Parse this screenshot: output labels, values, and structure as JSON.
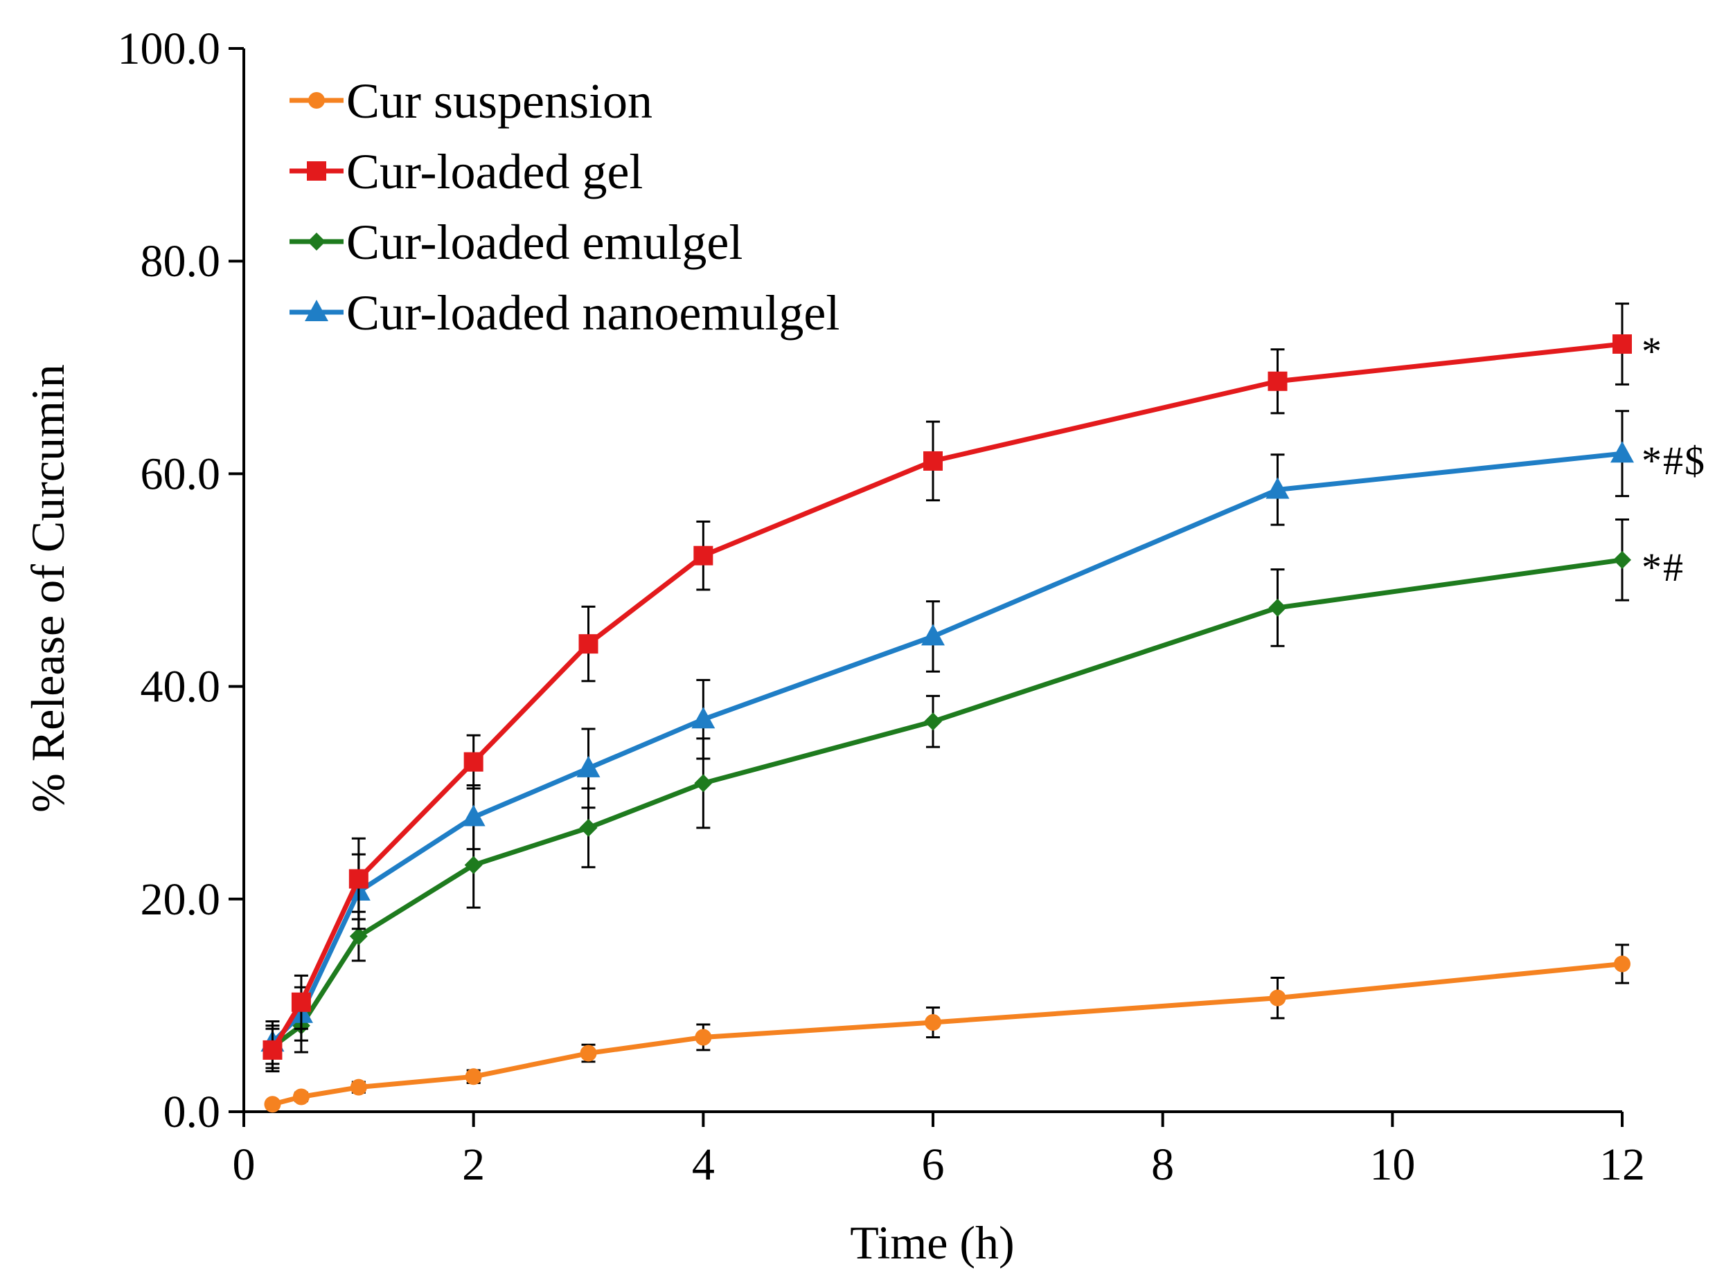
{
  "chart_data": {
    "type": "line",
    "title": "",
    "xlabel": "Time (h)",
    "ylabel": "% Release of Curcumin",
    "xlim": [
      0,
      12
    ],
    "ylim": [
      0,
      100
    ],
    "x_ticks": [
      "0",
      "2",
      "4",
      "6",
      "8",
      "10",
      "12"
    ],
    "y_ticks": [
      "0.0",
      "20.0",
      "40.0",
      "60.0",
      "80.0",
      "100.0"
    ],
    "legend_position": "top-left",
    "x": [
      0.25,
      0.5,
      1,
      2,
      3,
      4,
      6,
      9,
      12
    ],
    "series": [
      {
        "name": "Cur suspension",
        "color": "#f58220",
        "marker": "circle",
        "values": [
          0.7,
          1.4,
          2.3,
          3.3,
          5.5,
          7.0,
          8.4,
          10.7,
          13.9
        ],
        "errors": [
          0.3,
          0.4,
          0.5,
          0.6,
          0.8,
          1.2,
          1.4,
          1.9,
          1.8
        ],
        "annotation": ""
      },
      {
        "name": "Cur-loaded gel",
        "color": "#e31a1c",
        "marker": "square",
        "values": [
          5.8,
          10.3,
          21.9,
          32.9,
          44.0,
          52.3,
          61.2,
          68.7,
          72.2
        ],
        "errors": [
          2.0,
          2.5,
          3.8,
          2.5,
          3.5,
          3.2,
          3.7,
          3.0,
          3.8
        ],
        "annotation": "*"
      },
      {
        "name": "Cur-loaded emulgel",
        "color": "#1e7b1e",
        "marker": "diamond",
        "values": [
          6.1,
          8.1,
          16.5,
          23.2,
          26.7,
          30.9,
          36.7,
          47.4,
          51.9
        ],
        "errors": [
          2.0,
          2.5,
          2.3,
          4.0,
          3.7,
          4.2,
          2.4,
          3.6,
          3.8
        ],
        "annotation": "*#"
      },
      {
        "name": "Cur-loaded nanoemulgel",
        "color": "#1f7ec6",
        "marker": "triangle",
        "values": [
          6.5,
          9.2,
          20.7,
          27.7,
          32.3,
          36.9,
          44.7,
          58.5,
          61.9
        ],
        "errors": [
          2.0,
          2.5,
          3.5,
          3.0,
          3.7,
          3.7,
          3.3,
          3.3,
          4.0
        ],
        "annotation": "*#$"
      }
    ]
  }
}
